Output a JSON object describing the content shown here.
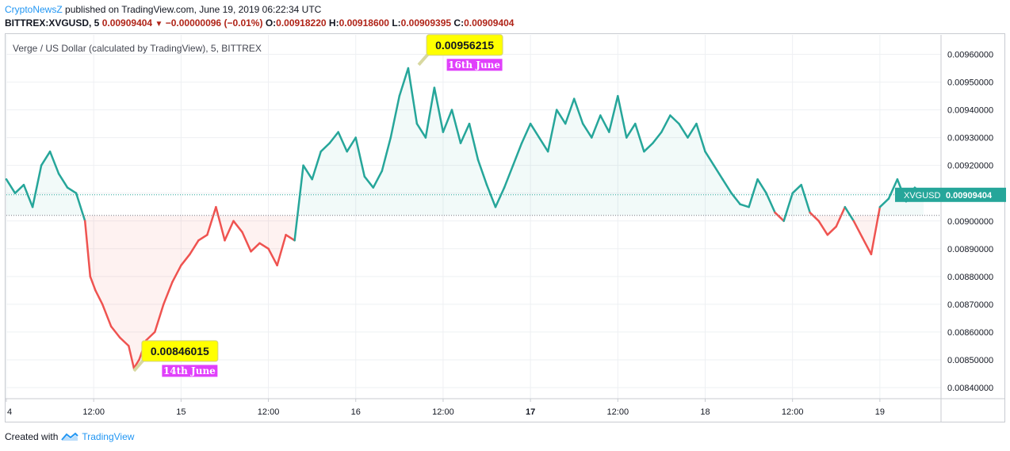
{
  "header": {
    "author": "CryptoNewsZ",
    "published_text": " published on TradingView.com, June 19, 2019 06:22:34 UTC"
  },
  "ticker": {
    "symbol": "BITTREX:XVGUSD, 5",
    "last": "0.00909404",
    "arrow": "▼",
    "change": "−0.00000096 (−0.01%)",
    "o_label": "O:",
    "o_value": "0.00918220",
    "h_label": "H:",
    "h_value": "0.00918600",
    "l_label": "L:",
    "l_value": "0.00909395",
    "c_label": "C:",
    "c_value": "0.00909404"
  },
  "legend": "Verge / US Dollar (calculated by TradingView), 5, BITTREX",
  "footer": {
    "created_with": "Created with",
    "brand": "TradingView"
  },
  "colors": {
    "up": "#26a69a",
    "down": "#ef5350",
    "accent": "#2196f3",
    "callout": "#ffff00",
    "date_tag": "#e040fb"
  },
  "chart_data": {
    "type": "area",
    "baseline": 0.00902,
    "last_price": 0.00909404,
    "price_label": "XVGUSD",
    "price_label_value": "0.00909404",
    "ylim": [
      0.00836,
      0.00967
    ],
    "yticks": [
      "0.00840000",
      "0.00850000",
      "0.00860000",
      "0.00870000",
      "0.00880000",
      "0.00890000",
      "0.00900000",
      "0.00910000",
      "0.00920000",
      "0.00930000",
      "0.00940000",
      "0.00950000",
      "0.00960000"
    ],
    "ytick_values": [
      0.0084,
      0.0085,
      0.0086,
      0.0087,
      0.0088,
      0.0089,
      0.009,
      0.0091,
      0.0092,
      0.0093,
      0.0094,
      0.0095,
      0.0096
    ],
    "xlim": [
      0,
      53.5
    ],
    "xticks": [
      {
        "label": "4",
        "x": 0,
        "bold": false
      },
      {
        "label": "12:00",
        "x": 5,
        "bold": false
      },
      {
        "label": "15",
        "x": 10,
        "bold": false
      },
      {
        "label": "12:00",
        "x": 15,
        "bold": false
      },
      {
        "label": "16",
        "x": 20,
        "bold": false
      },
      {
        "label": "12:00",
        "x": 25,
        "bold": false
      },
      {
        "label": "17",
        "x": 30,
        "bold": true
      },
      {
        "label": "12:00",
        "x": 35,
        "bold": false
      },
      {
        "label": "18",
        "x": 40,
        "bold": false
      },
      {
        "label": "12:00",
        "x": 45,
        "bold": false
      },
      {
        "label": "19",
        "x": 50,
        "bold": false
      }
    ],
    "x": [
      0,
      0.5,
      1,
      1.5,
      2,
      2.5,
      3,
      3.5,
      4,
      4.5,
      4.8,
      5.1,
      5.5,
      6,
      6.5,
      7,
      7.3,
      7.6,
      8,
      8.5,
      9,
      9.5,
      10,
      10.5,
      11,
      11.5,
      12,
      12.5,
      13,
      13.5,
      14,
      14.5,
      15,
      15.5,
      16,
      16.5,
      17,
      17.5,
      18,
      18.5,
      19,
      19.5,
      20,
      20.5,
      21,
      21.5,
      22,
      22.5,
      23,
      23.5,
      24,
      24.5,
      25,
      25.5,
      26,
      26.5,
      27,
      27.5,
      28,
      28.5,
      29,
      29.5,
      30,
      30.5,
      31,
      31.5,
      32,
      32.5,
      33,
      33.5,
      34,
      34.5,
      35,
      35.5,
      36,
      36.5,
      37,
      37.5,
      38,
      38.5,
      39,
      39.5,
      40,
      40.5,
      41,
      41.5,
      42,
      42.5,
      43,
      43.5,
      44,
      44.5,
      45,
      45.5,
      46,
      46.5,
      47,
      47.5,
      48,
      48.5,
      49,
      49.5,
      50,
      50.5,
      51,
      51.5,
      52,
      52.5
    ],
    "y": [
      0.00915,
      0.0091,
      0.00913,
      0.00905,
      0.0092,
      0.00925,
      0.00917,
      0.00912,
      0.0091,
      0.009,
      0.0088,
      0.00875,
      0.0087,
      0.00862,
      0.00858,
      0.00855,
      0.00847,
      0.0085,
      0.00857,
      0.0086,
      0.0087,
      0.00878,
      0.00884,
      0.00888,
      0.00893,
      0.00895,
      0.00905,
      0.00893,
      0.009,
      0.00896,
      0.00889,
      0.00892,
      0.0089,
      0.00884,
      0.00895,
      0.00893,
      0.0092,
      0.00915,
      0.00925,
      0.00928,
      0.00932,
      0.00925,
      0.0093,
      0.00916,
      0.00912,
      0.00918,
      0.0093,
      0.00945,
      0.00955,
      0.00935,
      0.0093,
      0.00948,
      0.00932,
      0.0094,
      0.00928,
      0.00935,
      0.00922,
      0.00913,
      0.00905,
      0.00912,
      0.0092,
      0.00928,
      0.00935,
      0.0093,
      0.00925,
      0.0094,
      0.00935,
      0.00944,
      0.00935,
      0.0093,
      0.00938,
      0.00932,
      0.00945,
      0.0093,
      0.00935,
      0.00925,
      0.00928,
      0.00932,
      0.00938,
      0.00935,
      0.0093,
      0.00935,
      0.00925,
      0.0092,
      0.00915,
      0.0091,
      0.00906,
      0.00905,
      0.00915,
      0.0091,
      0.00903,
      0.009,
      0.0091,
      0.00913,
      0.00903,
      0.009,
      0.00895,
      0.00898,
      0.00905,
      0.009,
      0.00894,
      0.00888,
      0.00905,
      0.00908,
      0.00915,
      0.00907,
      0.00912,
      0.00909
    ]
  },
  "annotations": [
    {
      "value": "0.00846015",
      "date": "14th June",
      "x": 7.3,
      "y": 0.00846015,
      "side": "right-up"
    },
    {
      "value": "0.00956215",
      "date": "16th June",
      "x": 23.6,
      "y": 0.00956215,
      "side": "right-up"
    }
  ]
}
